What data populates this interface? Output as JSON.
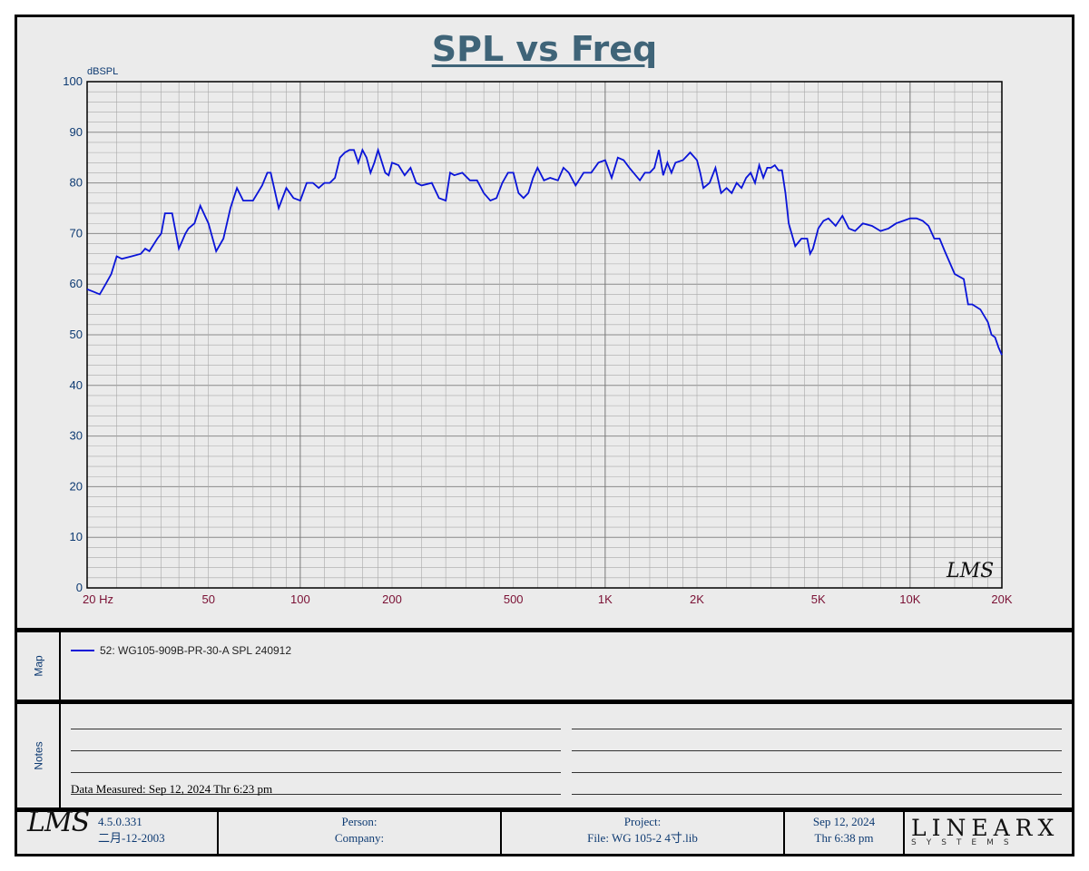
{
  "chart_data": {
    "type": "line",
    "title": "SPL vs Freq",
    "ylabel": "dBSPL",
    "xscale": "log",
    "xlim": [
      20,
      20000
    ],
    "ylim": [
      0,
      100
    ],
    "grid": true,
    "yticks": [
      "0",
      "10",
      "20",
      "30",
      "40",
      "50",
      "60",
      "70",
      "80",
      "90",
      "100"
    ],
    "xticks": [
      {
        "value": 20,
        "label": "20  Hz"
      },
      {
        "value": 50,
        "label": "50"
      },
      {
        "value": 100,
        "label": "100"
      },
      {
        "value": 200,
        "label": "200"
      },
      {
        "value": 500,
        "label": "500"
      },
      {
        "value": 1000,
        "label": "1K"
      },
      {
        "value": 2000,
        "label": "2K"
      },
      {
        "value": 5000,
        "label": "5K"
      },
      {
        "value": 10000,
        "label": "10K"
      },
      {
        "value": 20000,
        "label": "20K"
      }
    ],
    "series": [
      {
        "name": "52: WG105-909B-PR-30-A SPL 240912",
        "color": "#0a14d8",
        "x": [
          20,
          21,
          22,
          23,
          24,
          25,
          26,
          28,
          30,
          31,
          32,
          34,
          35,
          36,
          38,
          40,
          42,
          43,
          45,
          47,
          50,
          53,
          56,
          59,
          62,
          65,
          70,
          75,
          78,
          80,
          85,
          90,
          95,
          100,
          105,
          110,
          115,
          120,
          125,
          130,
          135,
          140,
          145,
          150,
          155,
          160,
          165,
          170,
          175,
          180,
          190,
          195,
          200,
          210,
          220,
          230,
          240,
          250,
          270,
          285,
          300,
          310,
          320,
          340,
          360,
          380,
          400,
          420,
          440,
          460,
          480,
          500,
          520,
          540,
          560,
          580,
          600,
          630,
          660,
          700,
          730,
          760,
          800,
          850,
          900,
          950,
          1000,
          1050,
          1100,
          1150,
          1200,
          1300,
          1350,
          1400,
          1450,
          1500,
          1550,
          1600,
          1650,
          1700,
          1800,
          1900,
          2000,
          2050,
          2100,
          2200,
          2300,
          2400,
          2500,
          2600,
          2700,
          2800,
          2900,
          3000,
          3100,
          3200,
          3300,
          3400,
          3500,
          3600,
          3700,
          3800,
          3900,
          4000,
          4200,
          4400,
          4600,
          4700,
          4800,
          5000,
          5200,
          5400,
          5700,
          6000,
          6300,
          6600,
          7000,
          7500,
          8000,
          8500,
          9000,
          9500,
          10000,
          10500,
          11000,
          11500,
          12000,
          12500,
          13000,
          14000,
          15000,
          15500,
          16000,
          17000,
          18000,
          18500,
          19000,
          19500,
          20000
        ],
        "y": [
          59,
          58.5,
          58,
          60,
          62,
          65.5,
          65,
          65.5,
          66,
          67,
          66.5,
          69,
          70,
          74,
          74,
          67,
          70,
          71,
          72,
          75.5,
          72,
          66.5,
          69,
          75,
          79,
          76.5,
          76.5,
          79.5,
          82,
          82,
          75,
          79,
          77,
          76.5,
          80,
          80,
          79,
          80,
          80,
          81,
          85,
          86,
          86.5,
          86.5,
          84,
          86.5,
          85,
          82,
          84,
          86.5,
          82,
          81.5,
          84,
          83.5,
          81.5,
          83,
          80,
          79.5,
          80,
          77,
          76.5,
          82,
          81.5,
          82,
          80.5,
          80.5,
          78,
          76.5,
          77,
          80,
          82,
          82,
          78,
          77,
          78,
          81,
          83,
          80.5,
          81,
          80.5,
          83,
          82,
          79.5,
          82,
          82,
          84,
          84.5,
          81,
          85,
          84.5,
          83,
          80.5,
          82,
          82,
          83,
          86.5,
          81.5,
          84,
          82,
          84,
          84.5,
          86,
          84.5,
          82,
          79,
          80,
          83,
          78,
          79,
          78,
          80,
          79,
          81,
          82,
          80,
          83.5,
          81,
          83,
          83,
          83.5,
          82.5,
          82.5,
          78,
          72,
          67.5,
          69,
          69,
          66,
          67,
          71,
          72.5,
          73,
          71.5,
          73.5,
          71,
          70.5,
          72,
          71.5,
          70.5,
          71,
          72,
          72.5,
          73,
          73,
          72.5,
          71.5,
          69,
          69,
          66.5,
          62,
          61,
          56,
          56,
          55,
          52.5,
          50,
          49.5,
          47.5,
          46
        ]
      }
    ]
  },
  "map_panel": {
    "label": "Map",
    "legend_entry": "52: WG105-909B-PR-30-A SPL 240912"
  },
  "notes_panel": {
    "label": "Notes",
    "data_measured": "Data Measured: Sep 12, 2024  Thr  6:23 pm"
  },
  "footer": {
    "lms_logo": "LMS",
    "version": "4.5.0.331",
    "build_date": "二月-12-2003",
    "person_label": "Person:",
    "company_label": "Company:",
    "project_label": "Project:",
    "file_label": "File: WG 105-2 4寸.lib",
    "date": "Sep 12, 2024",
    "time": "Thr  6:38 pm",
    "brand": "LINEARX",
    "brand_sub": "SYSTEMS"
  },
  "plot_watermark": "LMS",
  "colors": {
    "title": "#3f6478",
    "y_tick": "#0d3a72",
    "x_tick": "#7a1034",
    "curve": "#0a14d8",
    "grid": "#a8a8a8"
  }
}
